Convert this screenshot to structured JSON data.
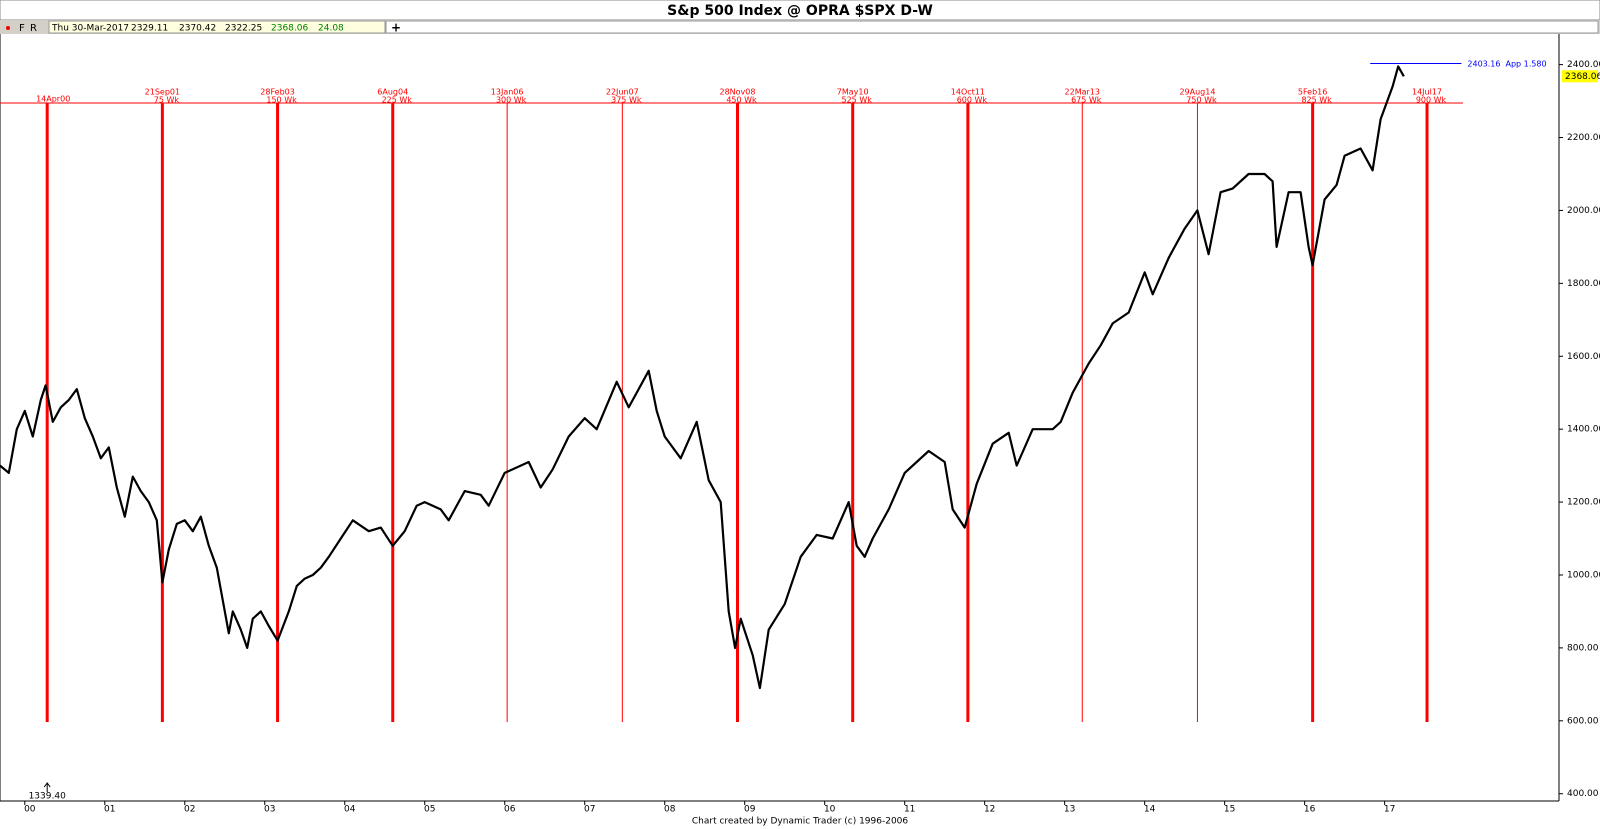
{
  "toolbar": {
    "buttons": [
      "F",
      "R"
    ],
    "date": "Thu 30-Mar-2017",
    "open": 2329.11,
    "high": 2370.42,
    "low": 2322.25,
    "close": 2368.06,
    "change": 24.08,
    "add": "+"
  },
  "footer": "Chart created by Dynamic Trader  (c) 1996-2006",
  "chart_data": {
    "type": "line",
    "title": "S&p 500 Index @ OPRA $SPX   D-W",
    "color": "#000000",
    "x": [
      1999.69,
      1999.8,
      1999.9,
      2000.0,
      2000.1,
      2000.2,
      2000.26,
      2000.35,
      2000.45,
      2000.55,
      2000.65,
      2000.75,
      2000.85,
      2000.95,
      2001.05,
      2001.15,
      2001.25,
      2001.35,
      2001.45,
      2001.55,
      2001.65,
      2001.72,
      2001.8,
      2001.9,
      2002.0,
      2002.1,
      2002.2,
      2002.3,
      2002.4,
      2002.5,
      2002.55,
      2002.6,
      2002.7,
      2002.78,
      2002.85,
      2002.95,
      2003.05,
      2003.16,
      2003.3,
      2003.4,
      2003.5,
      2003.6,
      2003.7,
      2003.8,
      2003.95,
      2004.1,
      2004.3,
      2004.45,
      2004.6,
      2004.75,
      2004.9,
      2005.0,
      2005.2,
      2005.3,
      2005.5,
      2005.7,
      2005.8,
      2006.0,
      2006.3,
      2006.45,
      2006.6,
      2006.8,
      2007.0,
      2007.15,
      2007.4,
      2007.55,
      2007.8,
      2007.9,
      2008.0,
      2008.2,
      2008.4,
      2008.55,
      2008.7,
      2008.8,
      2008.88,
      2008.95,
      2009.1,
      2009.19,
      2009.3,
      2009.5,
      2009.7,
      2009.9,
      2010.1,
      2010.3,
      2010.4,
      2010.5,
      2010.6,
      2010.8,
      2011.0,
      2011.3,
      2011.5,
      2011.6,
      2011.75,
      2011.9,
      2012.1,
      2012.3,
      2012.4,
      2012.6,
      2012.85,
      2012.95,
      2013.1,
      2013.3,
      2013.45,
      2013.6,
      2013.8,
      2014.0,
      2014.1,
      2014.3,
      2014.5,
      2014.66,
      2014.8,
      2014.95,
      2015.1,
      2015.3,
      2015.5,
      2015.6,
      2015.65,
      2015.8,
      2015.95,
      2016.05,
      2016.1,
      2016.25,
      2016.4,
      2016.5,
      2016.7,
      2016.85,
      2016.95,
      2017.1,
      2017.17,
      2017.24
    ],
    "values": [
      1300,
      1280,
      1400,
      1450,
      1380,
      1480,
      1520,
      1420,
      1460,
      1480,
      1510,
      1430,
      1380,
      1320,
      1350,
      1240,
      1160,
      1270,
      1230,
      1200,
      1150,
      980,
      1070,
      1140,
      1150,
      1120,
      1160,
      1080,
      1020,
      900,
      840,
      900,
      850,
      800,
      880,
      900,
      860,
      820,
      900,
      970,
      990,
      1000,
      1020,
      1050,
      1100,
      1150,
      1120,
      1130,
      1080,
      1120,
      1190,
      1200,
      1180,
      1150,
      1230,
      1220,
      1190,
      1280,
      1310,
      1240,
      1290,
      1380,
      1430,
      1400,
      1530,
      1460,
      1560,
      1450,
      1380,
      1320,
      1420,
      1260,
      1200,
      900,
      800,
      880,
      780,
      690,
      850,
      920,
      1050,
      1110,
      1100,
      1200,
      1080,
      1050,
      1100,
      1180,
      1280,
      1340,
      1310,
      1180,
      1130,
      1250,
      1360,
      1390,
      1300,
      1400,
      1400,
      1420,
      1500,
      1580,
      1630,
      1690,
      1720,
      1830,
      1770,
      1870,
      1950,
      2000,
      1880,
      2050,
      2060,
      2100,
      2100,
      2080,
      1900,
      2050,
      2050,
      1900,
      1850,
      2030,
      2070,
      2150,
      2170,
      2110,
      2250,
      2340,
      2395,
      2368
    ],
    "xlim": [
      1999.69,
      2019.18
    ],
    "xticks": [
      {
        "value": 2000,
        "label": "00"
      },
      {
        "value": 2001,
        "label": "01"
      },
      {
        "value": 2002,
        "label": "02"
      },
      {
        "value": 2003,
        "label": "03"
      },
      {
        "value": 2004,
        "label": "04"
      },
      {
        "value": 2005,
        "label": "05"
      },
      {
        "value": 2006,
        "label": "06"
      },
      {
        "value": 2007,
        "label": "07"
      },
      {
        "value": 2008,
        "label": "08"
      },
      {
        "value": 2009,
        "label": "09"
      },
      {
        "value": 2010,
        "label": "10"
      },
      {
        "value": 2011,
        "label": "11"
      },
      {
        "value": 2012,
        "label": "12"
      },
      {
        "value": 2013,
        "label": "13"
      },
      {
        "value": 2014,
        "label": "14"
      },
      {
        "value": 2015,
        "label": "15"
      },
      {
        "value": 2016,
        "label": "16"
      },
      {
        "value": 2017,
        "label": "17"
      }
    ],
    "ylim": [
      380,
      2484
    ],
    "yticks": [
      {
        "value": 400,
        "label": "400.00"
      },
      {
        "value": 600,
        "label": "600.00"
      },
      {
        "value": 800,
        "label": "800.00"
      },
      {
        "value": 1000,
        "label": "1000.00"
      },
      {
        "value": 1200,
        "label": "1200.00"
      },
      {
        "value": 1400,
        "label": "1400.00"
      },
      {
        "value": 1600,
        "label": "1600.00"
      },
      {
        "value": 1800,
        "label": "1800.00"
      },
      {
        "value": 2000,
        "label": "2000.00"
      },
      {
        "value": 2200,
        "label": "2200.00"
      },
      {
        "value": 2400,
        "label": "2400.00"
      }
    ],
    "last_price": 2368.06,
    "cycle_color": "#ff0000",
    "cycles": [
      {
        "x": 2000.28,
        "date": "14Apr00",
        "weight": "thick"
      },
      {
        "x": 2001.72,
        "date": "21Sep01",
        "weeks": "75 Wk",
        "weight": "thick"
      },
      {
        "x": 2003.16,
        "date": "28Feb03",
        "weeks": "150 Wk",
        "weight": "thick"
      },
      {
        "x": 2004.6,
        "date": "6Aug04",
        "weeks": "225 Wk",
        "weight": "thick"
      },
      {
        "x": 2006.03,
        "date": "13Jan06",
        "weeks": "300 Wk",
        "weight": "thin"
      },
      {
        "x": 2007.47,
        "date": "22Jun07",
        "weeks": "375 Wk",
        "weight": "thin"
      },
      {
        "x": 2008.91,
        "date": "28Nov08",
        "weeks": "450 Wk",
        "weight": "thick"
      },
      {
        "x": 2010.35,
        "date": "7May10",
        "weeks": "525 Wk",
        "weight": "thick"
      },
      {
        "x": 2011.79,
        "date": "14Oct11",
        "weeks": "600 Wk",
        "weight": "thick"
      },
      {
        "x": 2013.22,
        "date": "22Mar13",
        "weeks": "675 Wk",
        "weight": "thin"
      },
      {
        "x": 2014.66,
        "date": "29Aug14",
        "weeks": "750 Wk",
        "weight": "thin"
      },
      {
        "x": 2016.1,
        "date": "5Feb16",
        "weeks": "825 Wk",
        "weight": "thick"
      },
      {
        "x": 2017.53,
        "date": "14Jul17",
        "weeks": "900 Wk",
        "weight": "thick"
      }
    ],
    "target": {
      "price": 2403.16,
      "label": "App 1.580",
      "x": [
        2016.82,
        2017.96
      ],
      "color": "#0000ff"
    },
    "marker": {
      "x": 2000.28,
      "label": "1339.40"
    }
  }
}
